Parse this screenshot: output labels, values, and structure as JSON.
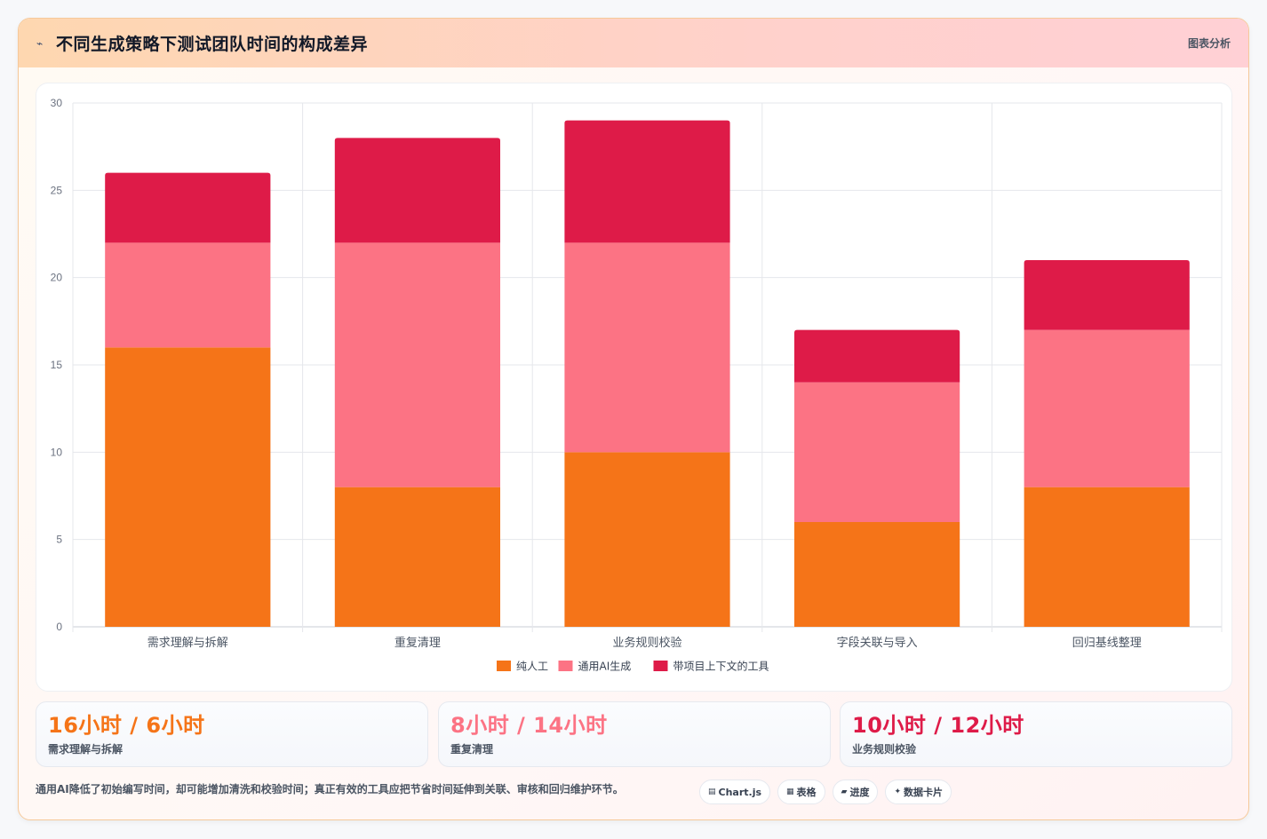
{
  "header": {
    "icon": "chart-spark-icon",
    "title": "不同生成策略下测试团队时间的构成差异",
    "tag": "图表分析"
  },
  "chart_data": {
    "type": "bar",
    "stacked": true,
    "title": "",
    "xlabel": "",
    "ylabel": "",
    "categories": [
      "需求理解与拆解",
      "重复清理",
      "业务规则校验",
      "字段关联与导入",
      "回归基线整理"
    ],
    "series": [
      {
        "name": "纯人工",
        "color": "#f57418",
        "values": [
          16,
          8,
          10,
          6,
          8
        ]
      },
      {
        "name": "通用AI生成",
        "color": "#fc7384",
        "values": [
          6,
          14,
          12,
          8,
          9
        ]
      },
      {
        "name": "带项目上下文的工具",
        "color": "#de1b48",
        "values": [
          4,
          6,
          7,
          3,
          4
        ]
      }
    ],
    "ylim": [
      0,
      30
    ],
    "yticks": [
      0,
      5,
      10,
      15,
      20,
      25,
      30
    ],
    "grid": true,
    "legend_position": "bottom"
  },
  "stats": [
    {
      "value": "16小时 / 6小时",
      "label": "需求理解与拆解",
      "color": "#f57418"
    },
    {
      "value": "8小时 / 14小时",
      "label": "重复清理",
      "color": "#fc7384"
    },
    {
      "value": "10小时 / 12小时",
      "label": "业务规则校验",
      "color": "#de1b48"
    }
  ],
  "footer": {
    "note": "通用AI降低了初始编写时间，却可能增加清洗和校验时间；真正有效的工具应把节省时间延伸到关联、审核和回归维护环节。",
    "chips": [
      {
        "icon": "chart-icon",
        "glyph": "▤",
        "label": "Chart.js"
      },
      {
        "icon": "table-icon",
        "glyph": "▦",
        "label": "表格"
      },
      {
        "icon": "progress-icon",
        "glyph": "▰",
        "label": "进度"
      },
      {
        "icon": "card-icon",
        "glyph": "✦",
        "label": "数据卡片"
      }
    ]
  }
}
